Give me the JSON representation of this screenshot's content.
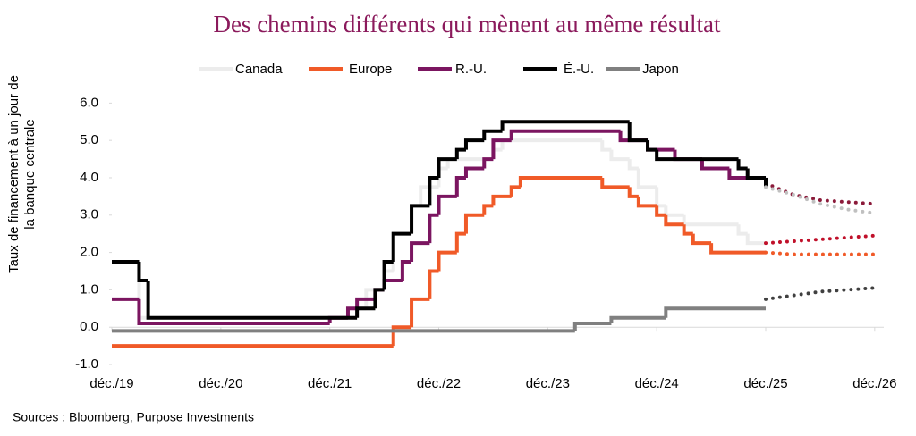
{
  "chart_data": {
    "type": "step",
    "title": "Des chemins différents qui mènent au même résultat",
    "ylabel": [
      "Taux de financement à un jour de",
      "la banque centrale"
    ],
    "source": "Sources : Bloomberg, Purpose Investments",
    "xlim": [
      "2019-12",
      "2027-01"
    ],
    "xticks": [
      {
        "value": "2019-12",
        "label": "déc./19"
      },
      {
        "value": "2020-12",
        "label": "déc./20"
      },
      {
        "value": "2021-12",
        "label": "déc./21"
      },
      {
        "value": "2022-12",
        "label": "déc./22"
      },
      {
        "value": "2023-12",
        "label": "déc./23"
      },
      {
        "value": "2024-12",
        "label": "déc./24"
      },
      {
        "value": "2025-12",
        "label": "déc./25"
      },
      {
        "value": "2026-12",
        "label": "déc./26"
      }
    ],
    "ylim": [
      -1,
      6.2
    ],
    "yticks": [
      {
        "value": -1,
        "label": "-1.0"
      },
      {
        "value": 0,
        "label": "0.0"
      },
      {
        "value": 1,
        "label": "1.0"
      },
      {
        "value": 2,
        "label": "2.0"
      },
      {
        "value": 3,
        "label": "3.0"
      },
      {
        "value": 4,
        "label": "4.0"
      },
      {
        "value": 5,
        "label": "5.0"
      },
      {
        "value": 6,
        "label": "6.0"
      }
    ],
    "series": [
      {
        "name": "Canada",
        "color": "#ececec",
        "x": [
          "2019-12",
          "2020-03",
          "2022-03",
          "2022-04",
          "2022-06",
          "2022-07",
          "2022-09",
          "2022-10",
          "2022-12",
          "2023-01",
          "2023-06",
          "2023-07",
          "2024-06",
          "2024-07",
          "2024-09",
          "2024-10",
          "2024-12",
          "2025-01",
          "2025-03",
          "2025-09",
          "2025-10",
          "2025-12"
        ],
        "values": [
          1.75,
          0.25,
          0.5,
          1.0,
          1.5,
          2.5,
          3.25,
          3.75,
          4.25,
          4.5,
          4.75,
          5.0,
          4.75,
          4.5,
          4.25,
          3.75,
          3.25,
          3.0,
          2.75,
          2.5,
          2.25,
          2.25
        ],
        "forecast": {
          "color": "#c0102a",
          "x": [
            "2025-12",
            "2026-03",
            "2026-06",
            "2026-09",
            "2026-12"
          ],
          "values": [
            2.25,
            2.3,
            2.35,
            2.4,
            2.45
          ]
        }
      },
      {
        "name": "Europe",
        "color": "#f05a28",
        "x": [
          "2019-12",
          "2022-07",
          "2022-09",
          "2022-11",
          "2022-12",
          "2023-02",
          "2023-03",
          "2023-05",
          "2023-06",
          "2023-08",
          "2023-09",
          "2024-06",
          "2024-09",
          "2024-10",
          "2024-12",
          "2025-01",
          "2025-03",
          "2025-04",
          "2025-06",
          "2025-12"
        ],
        "values": [
          -0.5,
          0.0,
          0.75,
          1.5,
          2.0,
          2.5,
          3.0,
          3.25,
          3.5,
          3.75,
          4.0,
          3.75,
          3.5,
          3.25,
          3.0,
          2.75,
          2.5,
          2.25,
          2.0,
          2.0
        ],
        "forecast": {
          "color": "#f05a28",
          "x": [
            "2025-12",
            "2026-03",
            "2026-06",
            "2026-09",
            "2026-12"
          ],
          "values": [
            2.0,
            1.95,
            1.95,
            1.95,
            1.95
          ]
        }
      },
      {
        "name": "R.-U.",
        "color": "#7b1560",
        "x": [
          "2019-12",
          "2020-03",
          "2021-12",
          "2022-02",
          "2022-03",
          "2022-05",
          "2022-06",
          "2022-08",
          "2022-09",
          "2022-11",
          "2022-12",
          "2023-02",
          "2023-03",
          "2023-05",
          "2023-06",
          "2023-08",
          "2024-08",
          "2024-11",
          "2025-02",
          "2025-05",
          "2025-08",
          "2025-12"
        ],
        "values": [
          0.75,
          0.1,
          0.25,
          0.5,
          0.75,
          1.0,
          1.25,
          1.75,
          2.25,
          3.0,
          3.5,
          4.0,
          4.25,
          4.5,
          5.0,
          5.25,
          5.0,
          4.75,
          4.5,
          4.25,
          4.0,
          3.75
        ],
        "forecast": {
          "color": "#8b1a3a",
          "x": [
            "2025-12",
            "2026-03",
            "2026-06",
            "2026-09",
            "2026-12"
          ],
          "values": [
            3.85,
            3.55,
            3.4,
            3.35,
            3.3
          ]
        }
      },
      {
        "name": "É.-U.",
        "color": "#000000",
        "x": [
          "2019-12",
          "2020-03",
          "2020-04",
          "2022-03",
          "2022-05",
          "2022-06",
          "2022-07",
          "2022-09",
          "2022-11",
          "2022-12",
          "2023-02",
          "2023-03",
          "2023-05",
          "2023-07",
          "2024-09",
          "2024-11",
          "2024-12",
          "2025-09",
          "2025-10",
          "2025-12"
        ],
        "values": [
          1.75,
          1.25,
          0.25,
          0.5,
          1.0,
          1.75,
          2.5,
          3.25,
          4.0,
          4.5,
          4.75,
          5.0,
          5.25,
          5.5,
          5.0,
          4.75,
          4.5,
          4.25,
          4.0,
          3.75
        ],
        "forecast": {
          "color": "#c0c0c0",
          "x": [
            "2025-12",
            "2026-03",
            "2026-06",
            "2026-09",
            "2026-12"
          ],
          "values": [
            3.75,
            3.55,
            3.3,
            3.15,
            3.05
          ]
        }
      },
      {
        "name": "Japon",
        "color": "#808080",
        "x": [
          "2019-12",
          "2024-03",
          "2024-07",
          "2025-01",
          "2025-12"
        ],
        "values": [
          -0.1,
          0.1,
          0.25,
          0.5,
          0.5
        ],
        "forecast": {
          "color": "#404040",
          "x": [
            "2025-12",
            "2026-03",
            "2026-06",
            "2026-09",
            "2026-12"
          ],
          "values": [
            0.75,
            0.85,
            0.95,
            1.0,
            1.05
          ]
        }
      }
    ]
  }
}
